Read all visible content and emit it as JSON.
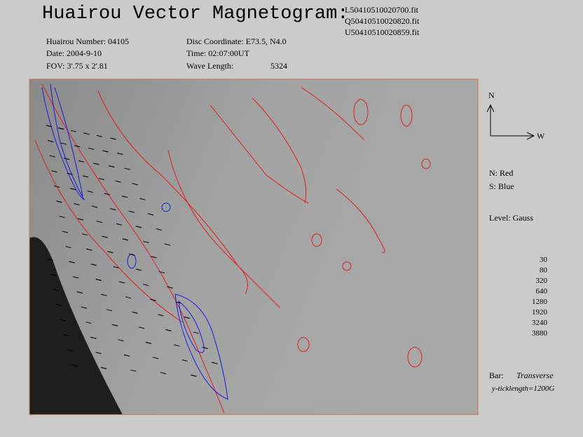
{
  "header": {
    "title": "Huairou Vector Magnetogram:",
    "files": [
      "L50410510020700.fit",
      "Q50410510020820.fit",
      "U50410510020859.fit"
    ]
  },
  "info": {
    "number": "Huairou Number: 04105",
    "date": "Date: 2004-9-10",
    "fov": "FOV:  3'.75 x 2'.81",
    "coordinate": "Disc Coordinate:  E73.5, N4.0",
    "time": "Time: 02:07:00UT",
    "wavelength_label": "Wave Length:",
    "wavelength": "5324"
  },
  "compass": {
    "north": "N",
    "west": "W"
  },
  "legend": {
    "north": "N: Red",
    "south": "S: Blue",
    "level": "Level: Gauss",
    "levels": [
      30,
      80,
      320,
      640,
      1280,
      1920,
      3240,
      3880
    ],
    "bar_label": "Bar:",
    "bar_type": "Transverse",
    "ticklength": "y-ticklength=1200G"
  }
}
